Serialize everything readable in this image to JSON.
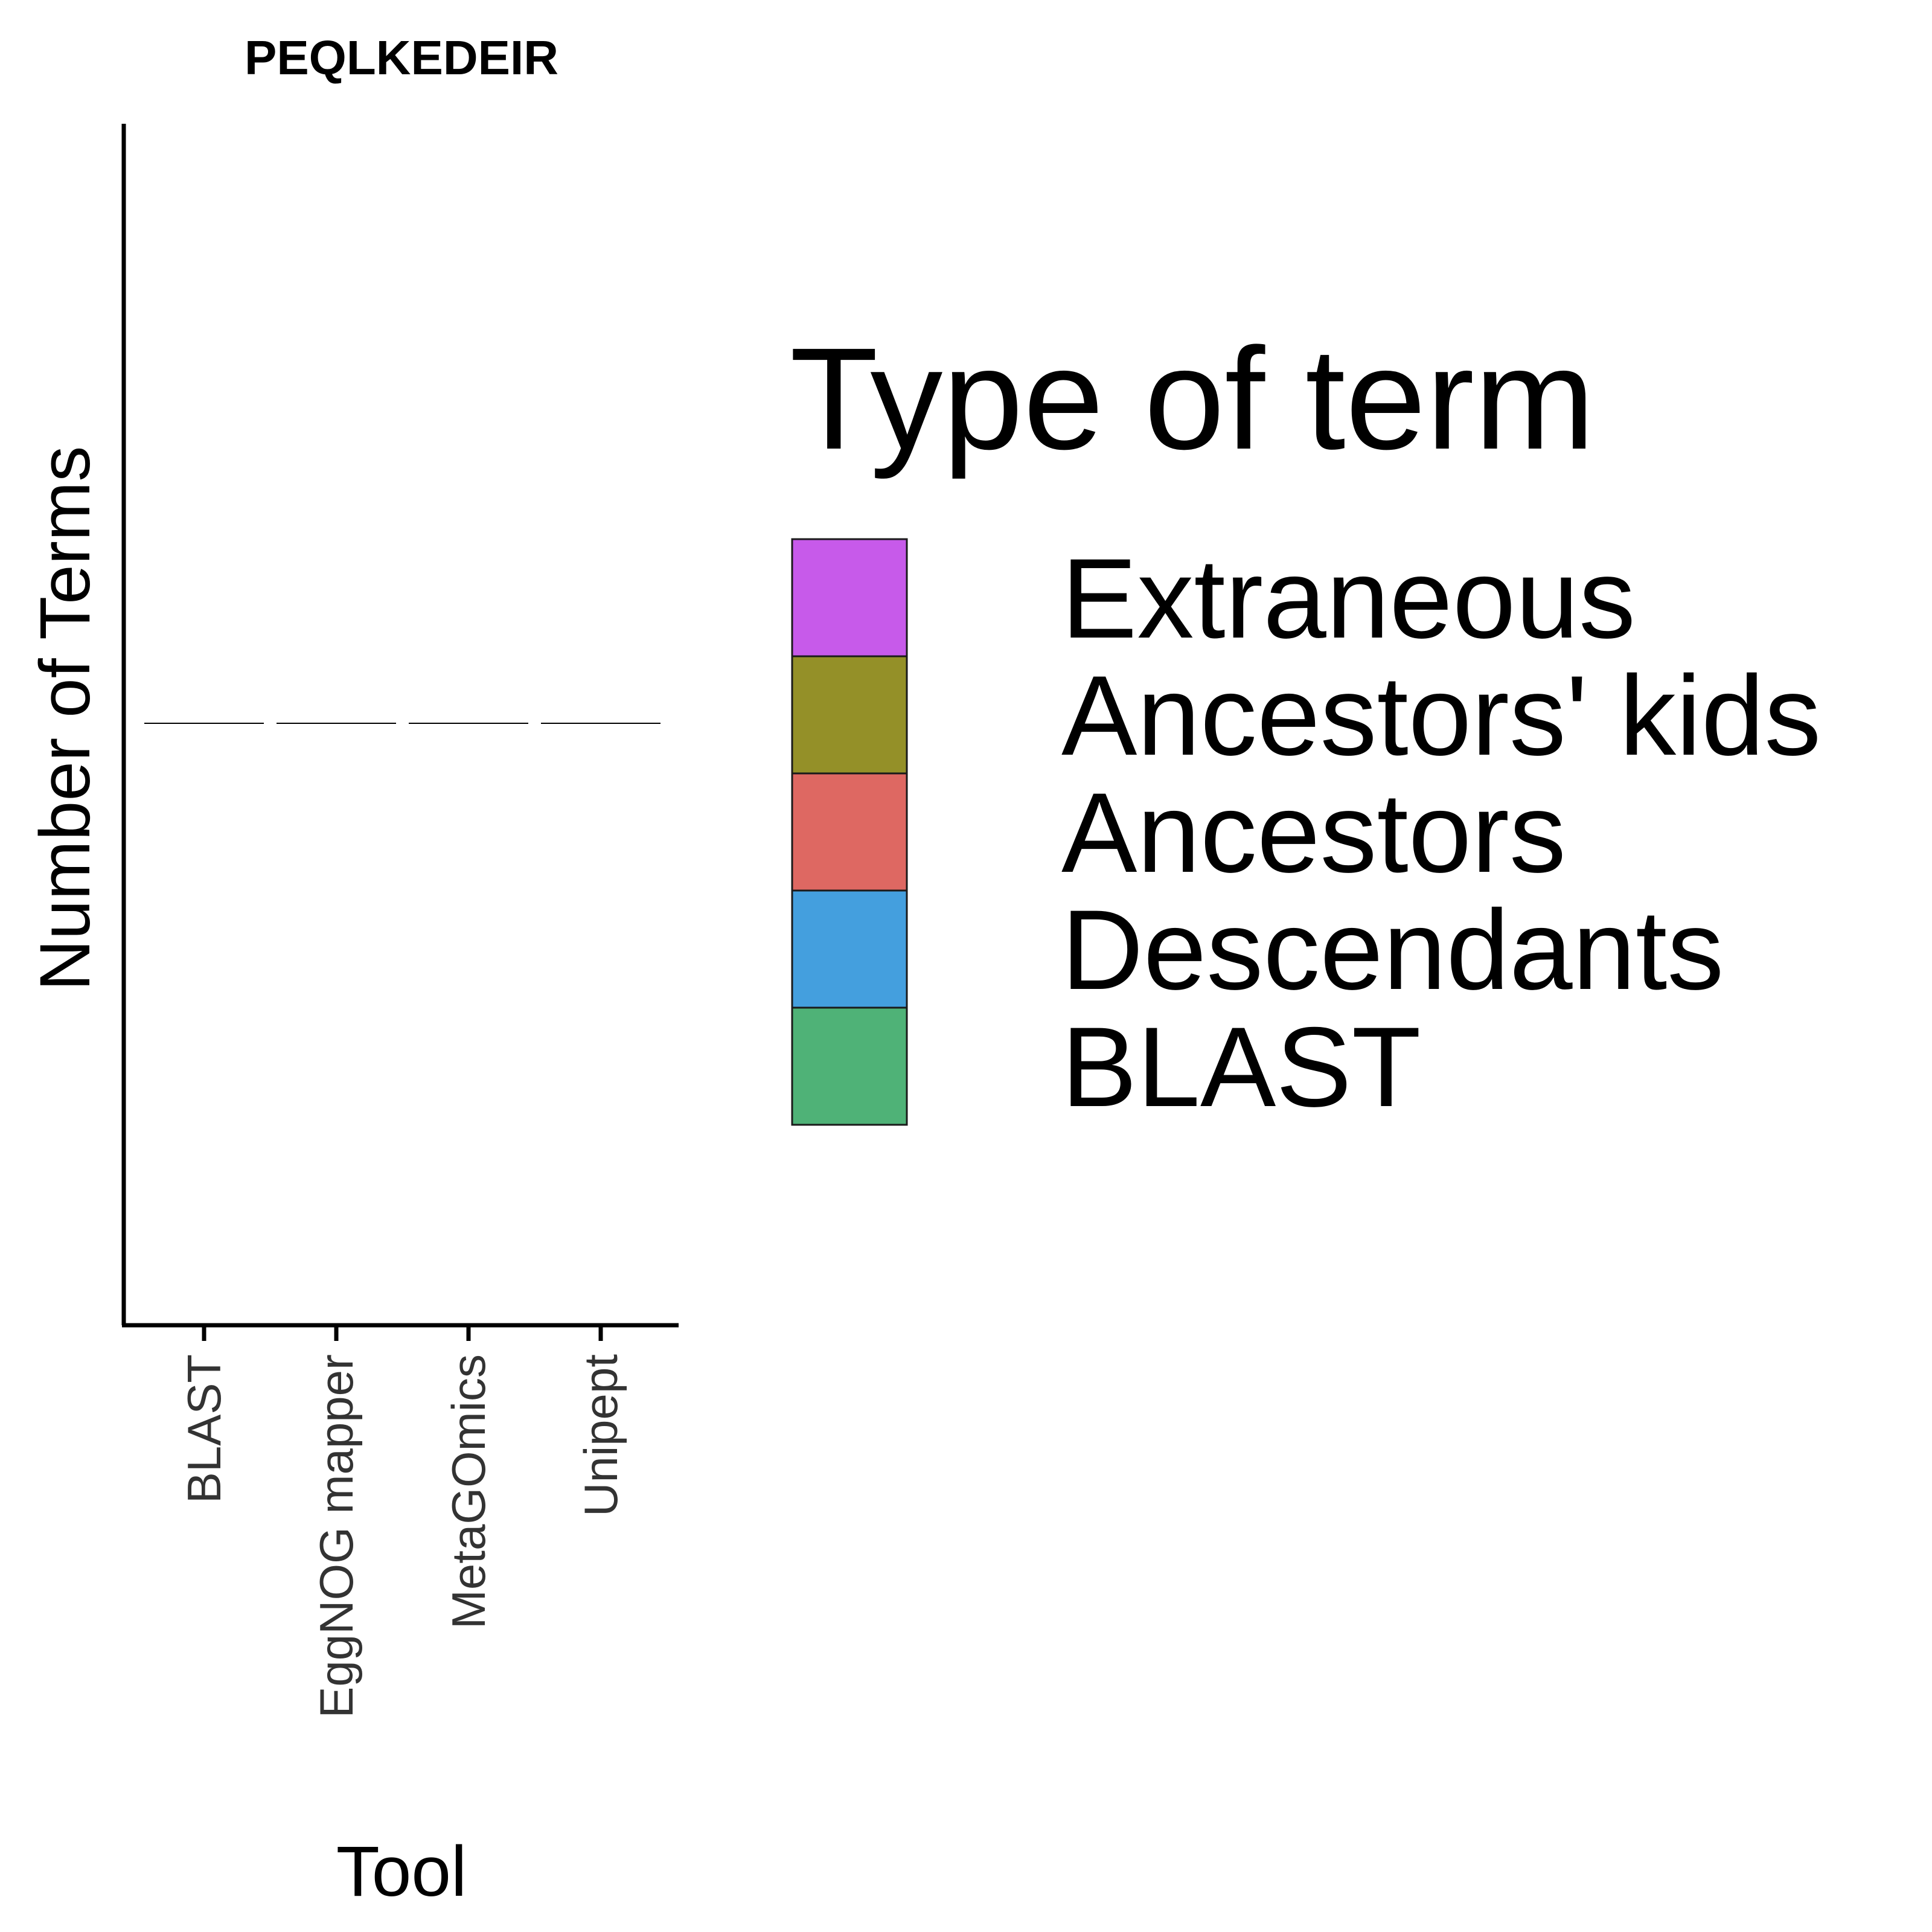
{
  "chart_data": {
    "type": "bar",
    "title": "PEQLKEDEIR",
    "xlabel": "Tool",
    "ylabel": "Number of Terms",
    "categories": [
      "BLAST",
      "EggNOG mapper",
      "MetaGOmics",
      "Unipept"
    ],
    "series": [
      {
        "name": "Extraneous",
        "color": "#C75AEA",
        "values": [
          0,
          0,
          0,
          0
        ]
      },
      {
        "name": "Ancestors' kids",
        "color": "#949028",
        "values": [
          0,
          0,
          0,
          0
        ]
      },
      {
        "name": "Ancestors",
        "color": "#DE6862",
        "values": [
          0,
          0,
          0,
          0
        ]
      },
      {
        "name": "Descendants",
        "color": "#449FDE",
        "values": [
          0,
          0,
          0,
          0
        ]
      },
      {
        "name": "BLAST",
        "color": "#4FB277",
        "values": [
          0,
          0,
          0,
          0
        ]
      }
    ],
    "stacked": true,
    "legend_title": "Type of term",
    "legend_position": "right",
    "grid": false
  }
}
